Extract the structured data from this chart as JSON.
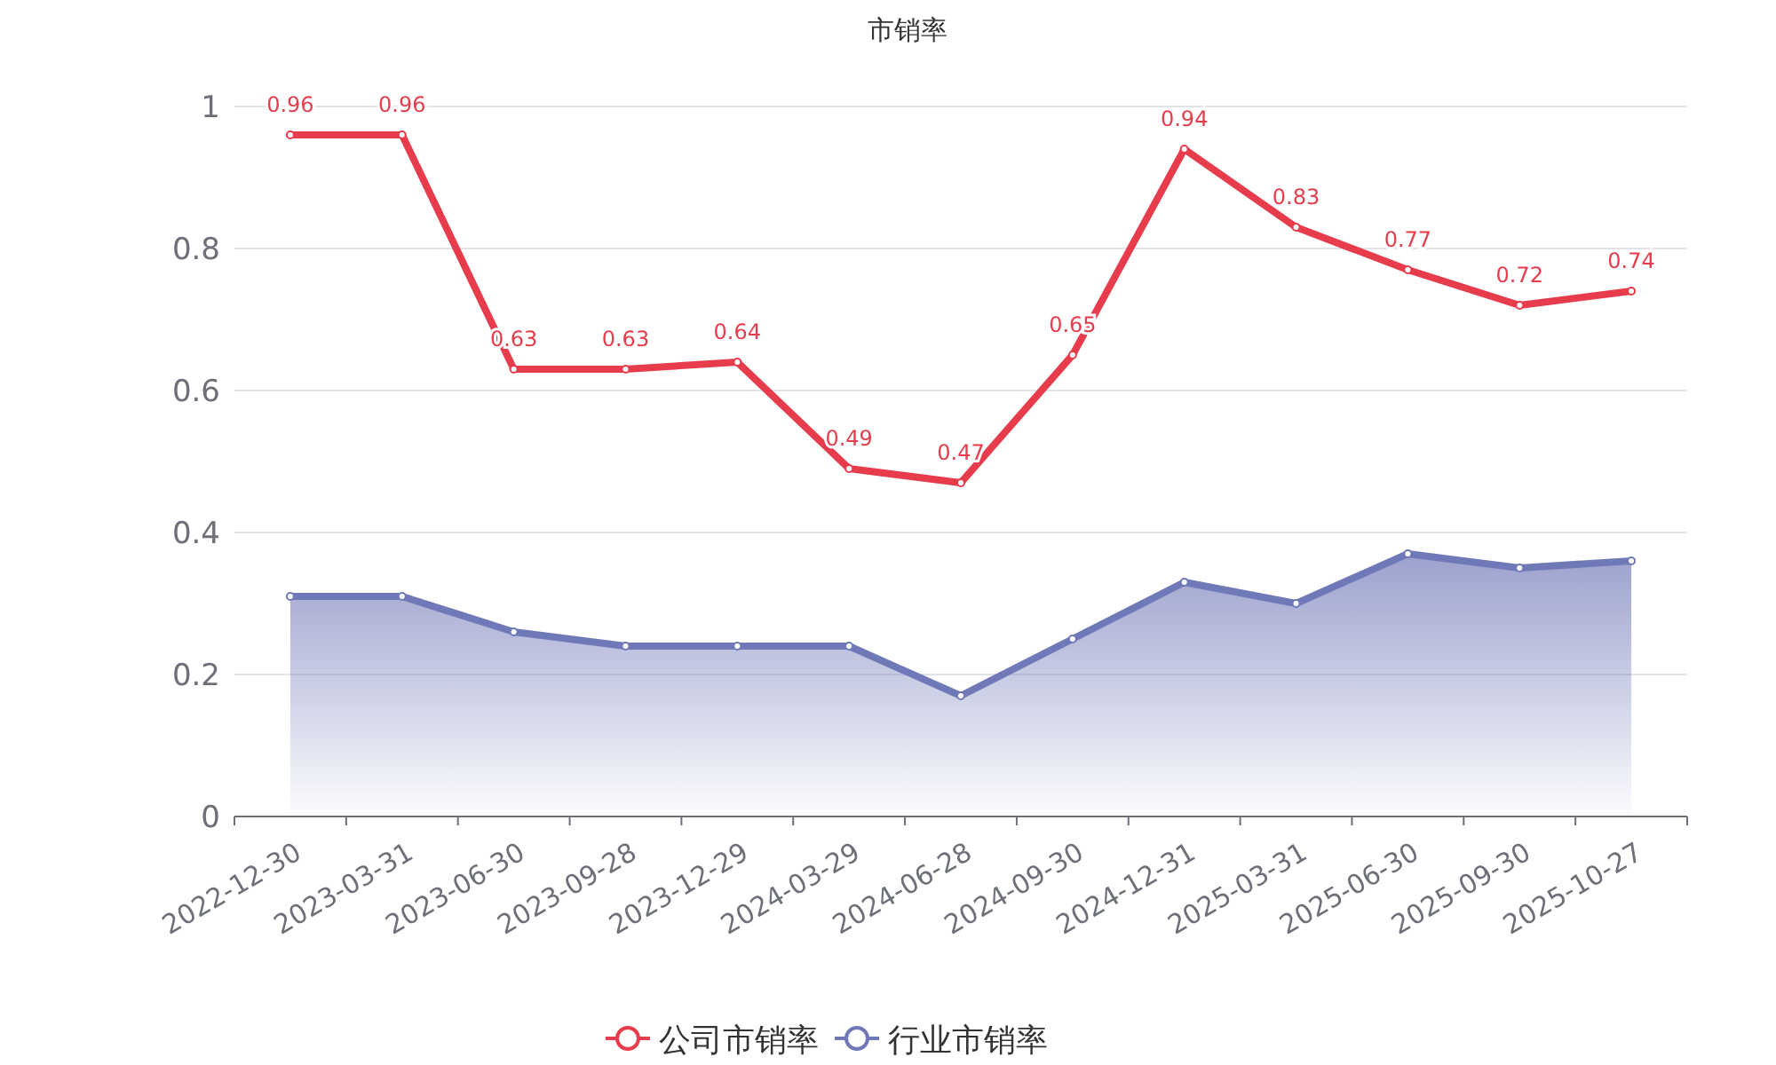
{
  "chart_data": {
    "type": "line",
    "title": "市销率",
    "categories": [
      "2022-12-30",
      "2023-03-31",
      "2023-06-30",
      "2023-09-28",
      "2023-12-29",
      "2024-03-29",
      "2024-06-28",
      "2024-09-30",
      "2024-12-31",
      "2025-03-31",
      "2025-06-30",
      "2025-09-30",
      "2025-10-27"
    ],
    "series": [
      {
        "name": "公司市销率",
        "color": "#e63c4b",
        "values": [
          0.96,
          0.96,
          0.63,
          0.63,
          0.64,
          0.49,
          0.47,
          0.65,
          0.94,
          0.83,
          0.77,
          0.72,
          0.74
        ],
        "value_labels": [
          "0.96",
          "0.96",
          "0.63",
          "0.63",
          "0.64",
          "0.49",
          "0.47",
          "0.65",
          "0.94",
          "0.83",
          "0.77",
          "0.72",
          "0.74"
        ]
      },
      {
        "name": "行业市销率",
        "type": "area",
        "color": "#7079b8",
        "values": [
          0.31,
          0.31,
          0.26,
          0.24,
          0.24,
          0.24,
          0.17,
          0.25,
          0.33,
          0.3,
          0.37,
          0.35,
          0.36
        ]
      }
    ],
    "ylim": [
      0,
      1
    ],
    "yticks": [
      0,
      0.2,
      0.4,
      0.6,
      0.8,
      1
    ],
    "grid": "y",
    "legend": "bottom",
    "marker": "circle",
    "line_style": "solid"
  }
}
